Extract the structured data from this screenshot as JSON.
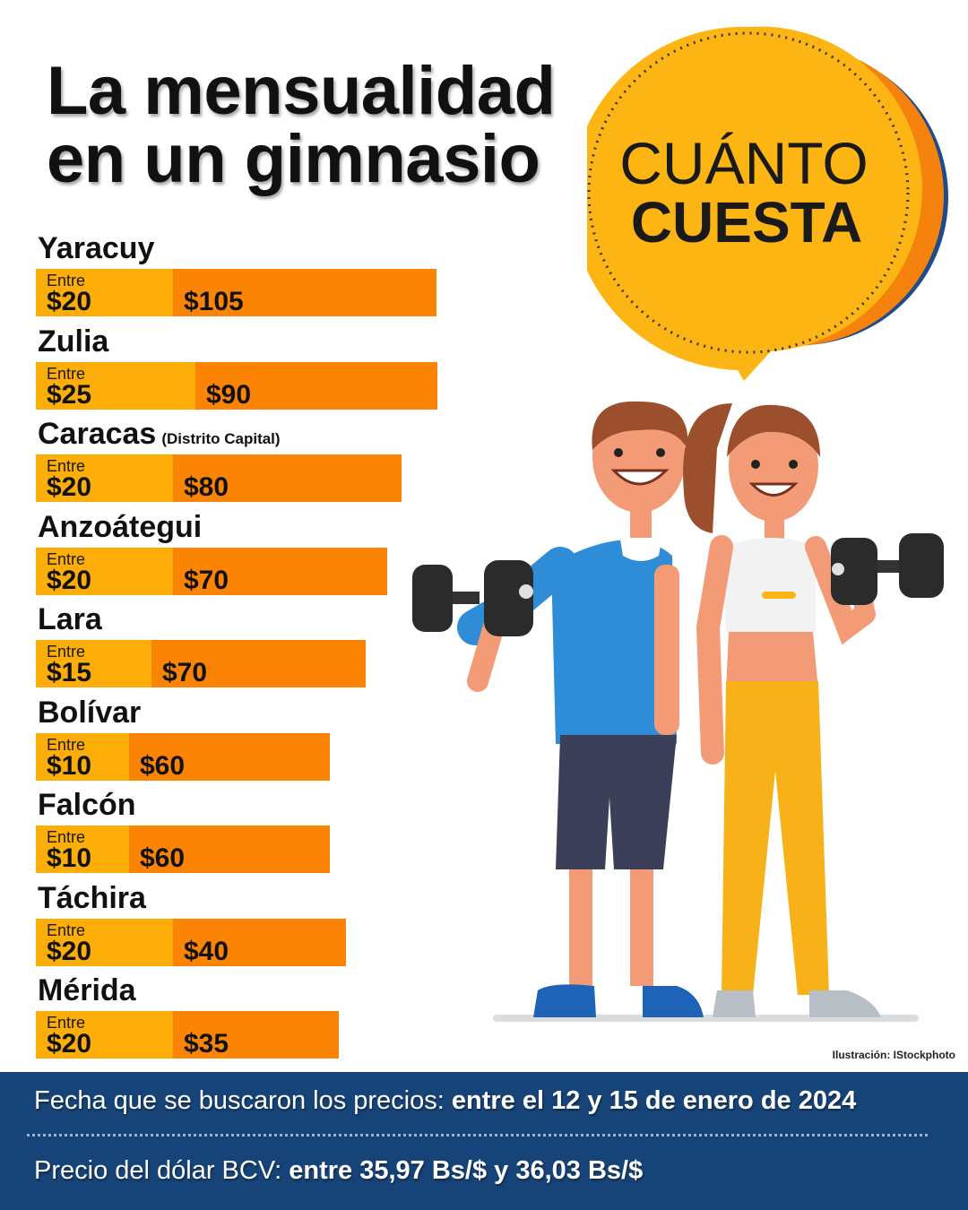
{
  "title_lines": [
    "La mensualidad",
    "en un gimnasio"
  ],
  "badge": {
    "line1": "CUÁNTO",
    "line2": "CUESTA"
  },
  "chart_data": {
    "type": "bar",
    "orientation": "horizontal",
    "categories": [
      "Yaracuy",
      "Zulia",
      "Caracas",
      "Anzoátegui",
      "Lara",
      "Bolívar",
      "Falcón",
      "Táchira",
      "Mérida"
    ],
    "category_notes": [
      "",
      "",
      "(Distrito Capital)",
      "",
      "",
      "",
      "",
      "",
      ""
    ],
    "range_prefix": "Entre",
    "series": [
      {
        "name": "",
        "values": [
          20,
          25,
          20,
          20,
          15,
          10,
          10,
          20,
          20
        ],
        "labels": [
          "$20",
          "$25",
          "$20",
          "$20",
          "$15",
          "$10",
          "$10",
          "$20",
          "$20"
        ]
      },
      {
        "name": "",
        "values": [
          105,
          90,
          80,
          70,
          70,
          60,
          60,
          40,
          35
        ],
        "labels": [
          "$105",
          "$90",
          "$80",
          "$70",
          "$70",
          "$60",
          "$60",
          "$40",
          "$35"
        ]
      }
    ],
    "colors": {
      "min": "#fcad07",
      "max": "#fc8405"
    },
    "grid": false,
    "legend": "none"
  },
  "credit": "Ilustración: IStockphoto",
  "footer": {
    "date_label": "Fecha que se buscaron los precios: ",
    "date_value": "entre el 12 y 15 de enero de 2024",
    "rate_label": "Precio del dólar BCV: ",
    "rate_value": "entre 35,97 Bs/$ y 36,03 Bs/$"
  },
  "colors": {
    "footer_bg": "#174478",
    "badge_yellow": "#fdb514",
    "badge_orange": "#f5820d",
    "badge_blue": "#1d4b8c"
  }
}
